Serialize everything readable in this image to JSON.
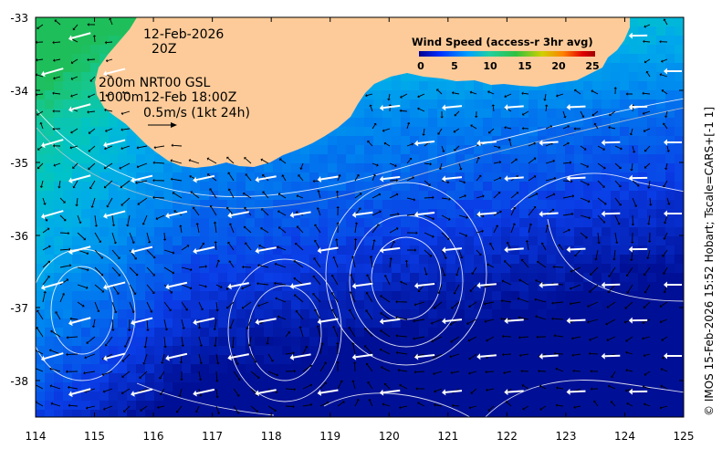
{
  "map": {
    "date": "12-Feb-2026",
    "time": "20Z",
    "vector_legend": {
      "line1": "200m  NRT00 GSL",
      "line2": "1000m12-Feb 18:00Z",
      "line3": "0.5m/s (1kt 24h)"
    },
    "colorbar": {
      "title": "Wind Speed (access-r 3hr avg)",
      "ticks": [
        "0",
        "5",
        "10",
        "15",
        "20",
        "25"
      ],
      "colors": [
        "#00008f",
        "#0030ff",
        "#00a0ff",
        "#20d0a0",
        "#30c040",
        "#d0d000",
        "#ff8000",
        "#e00000",
        "#a00000"
      ]
    },
    "side_credit": "© IMOS 15-Feb-2026 15:52 Hobart; Tscale=CARS+[-1 1]",
    "x_ticks": [
      "114",
      "115",
      "116",
      "117",
      "118",
      "119",
      "120",
      "121",
      "122",
      "123",
      "124",
      "125"
    ],
    "y_ticks": [
      "-33",
      "-34",
      "-35",
      "-36",
      "-37",
      "-38"
    ],
    "extent": {
      "lon": [
        114,
        125
      ],
      "lat": [
        -38.5,
        -33
      ]
    },
    "colors": {
      "land": "#fdcb99",
      "current_arrows": "#000000",
      "wind_arrows": "#ffffff",
      "contours": "#ffffff"
    }
  }
}
